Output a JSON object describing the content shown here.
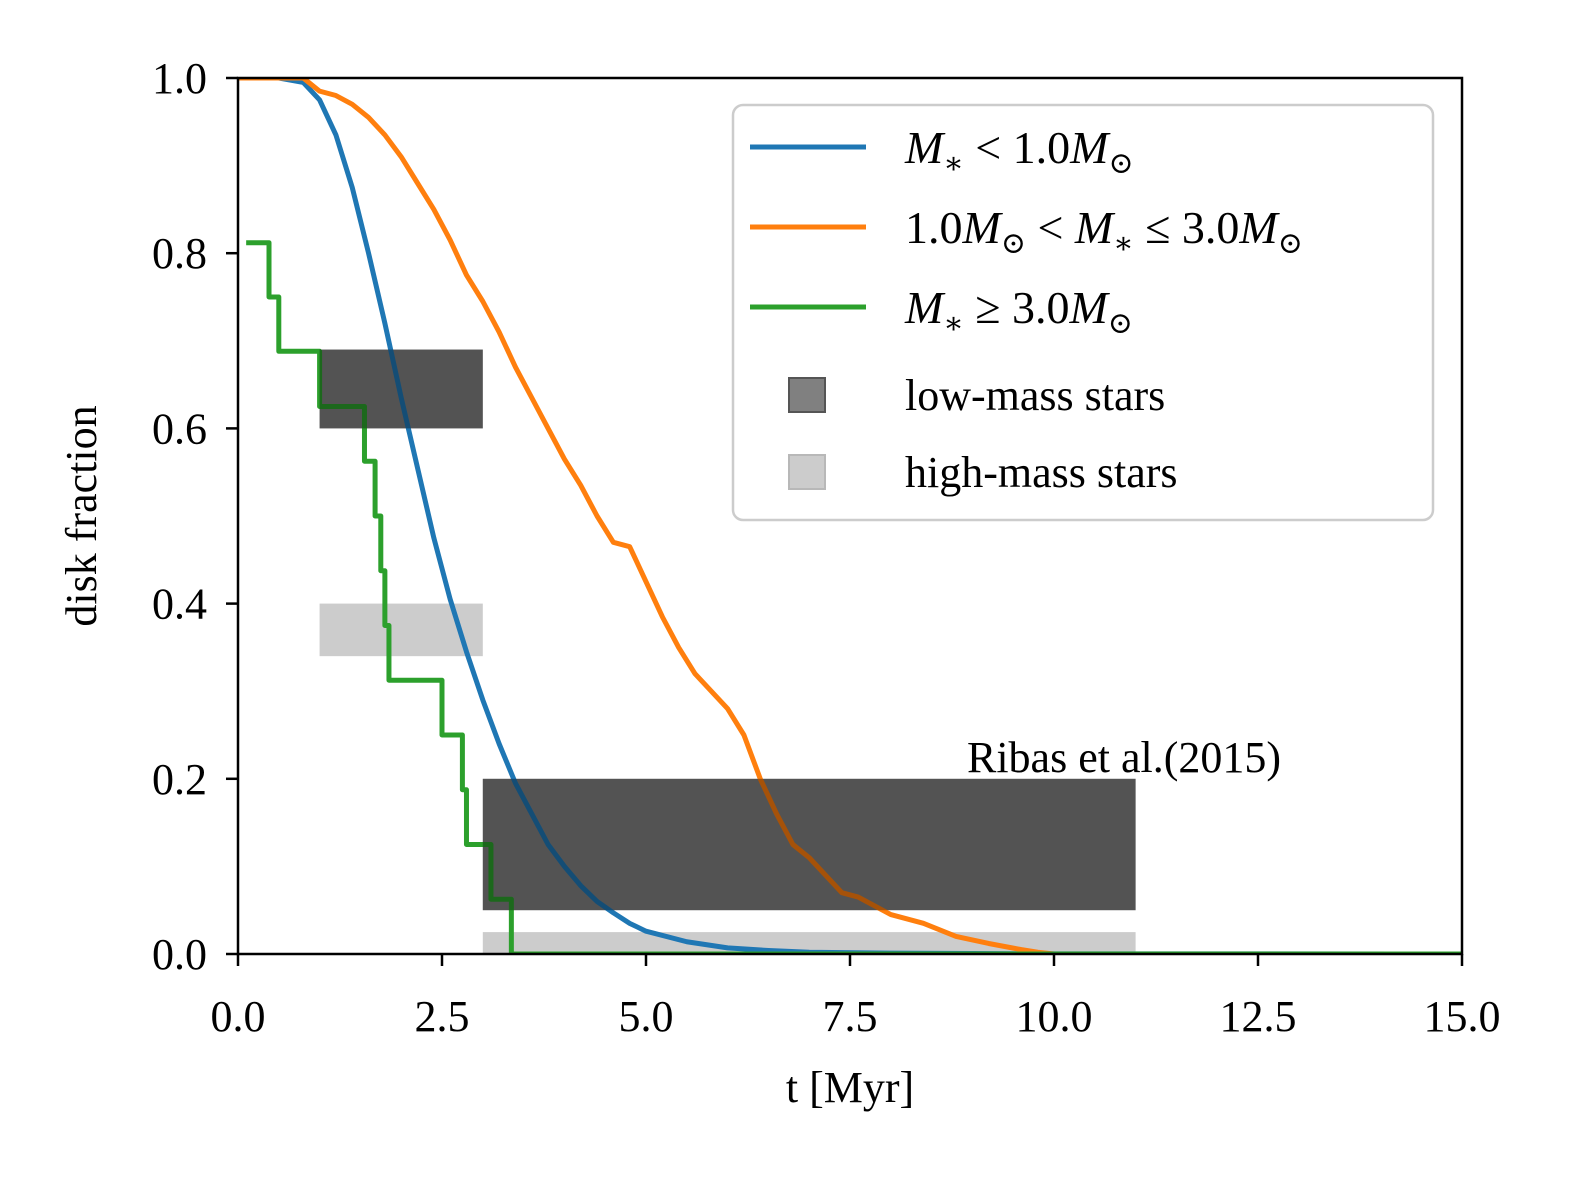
{
  "chart_data": {
    "type": "line",
    "title": "",
    "xlabel": "t [Myr]",
    "ylabel": "disk fraction",
    "xlim": [
      0,
      15
    ],
    "ylim": [
      0,
      1
    ],
    "grid": false,
    "legend_position": "top-right",
    "x_ticks": [
      "0.0",
      "2.5",
      "5.0",
      "7.5",
      "10.0",
      "12.5",
      "15.0"
    ],
    "y_ticks": [
      "0.0",
      "0.2",
      "0.4",
      "0.6",
      "0.8",
      "1.0"
    ],
    "series": [
      {
        "name": "M* < 1.0 M☉",
        "color": "#1f77b4",
        "step": false,
        "points": [
          [
            0,
            1
          ],
          [
            0.5,
            1
          ],
          [
            0.8,
            0.995
          ],
          [
            1.0,
            0.975
          ],
          [
            1.2,
            0.935
          ],
          [
            1.4,
            0.875
          ],
          [
            1.6,
            0.8
          ],
          [
            1.8,
            0.72
          ],
          [
            2.0,
            0.635
          ],
          [
            2.2,
            0.555
          ],
          [
            2.4,
            0.475
          ],
          [
            2.6,
            0.405
          ],
          [
            2.8,
            0.345
          ],
          [
            3.0,
            0.29
          ],
          [
            3.2,
            0.24
          ],
          [
            3.4,
            0.195
          ],
          [
            3.6,
            0.16
          ],
          [
            3.8,
            0.125
          ],
          [
            4.0,
            0.1
          ],
          [
            4.2,
            0.078
          ],
          [
            4.4,
            0.06
          ],
          [
            4.6,
            0.047
          ],
          [
            4.8,
            0.035
          ],
          [
            5.0,
            0.026
          ],
          [
            5.5,
            0.014
          ],
          [
            6.0,
            0.007
          ],
          [
            6.5,
            0.004
          ],
          [
            7.0,
            0.002
          ],
          [
            8.0,
            0.001
          ],
          [
            9.0,
            0.0005
          ],
          [
            10.0,
            0.0002
          ],
          [
            15.0,
            0
          ]
        ]
      },
      {
        "name": "1.0 M☉ < M* ≤ 3.0 M☉",
        "color": "#ff7f0e",
        "step": false,
        "points": [
          [
            0,
            1
          ],
          [
            0.8,
            1
          ],
          [
            1.0,
            0.985
          ],
          [
            1.2,
            0.98
          ],
          [
            1.4,
            0.97
          ],
          [
            1.6,
            0.955
          ],
          [
            1.8,
            0.935
          ],
          [
            2.0,
            0.91
          ],
          [
            2.2,
            0.88
          ],
          [
            2.4,
            0.85
          ],
          [
            2.6,
            0.815
          ],
          [
            2.8,
            0.775
          ],
          [
            3.0,
            0.745
          ],
          [
            3.2,
            0.71
          ],
          [
            3.4,
            0.67
          ],
          [
            3.6,
            0.635
          ],
          [
            3.8,
            0.6
          ],
          [
            4.0,
            0.565
          ],
          [
            4.2,
            0.535
          ],
          [
            4.4,
            0.5
          ],
          [
            4.6,
            0.47
          ],
          [
            4.8,
            0.465
          ],
          [
            5.0,
            0.425
          ],
          [
            5.2,
            0.385
          ],
          [
            5.4,
            0.35
          ],
          [
            5.6,
            0.32
          ],
          [
            5.8,
            0.3
          ],
          [
            6.0,
            0.28
          ],
          [
            6.2,
            0.25
          ],
          [
            6.4,
            0.2
          ],
          [
            6.6,
            0.16
          ],
          [
            6.8,
            0.125
          ],
          [
            7.0,
            0.11
          ],
          [
            7.2,
            0.09
          ],
          [
            7.4,
            0.07
          ],
          [
            7.6,
            0.065
          ],
          [
            7.8,
            0.055
          ],
          [
            8.0,
            0.045
          ],
          [
            8.4,
            0.035
          ],
          [
            8.8,
            0.02
          ],
          [
            9.2,
            0.012
          ],
          [
            9.6,
            0.005
          ],
          [
            9.8,
            0.002
          ],
          [
            10.0,
            0
          ],
          [
            15.0,
            0
          ]
        ]
      },
      {
        "name": "M* ≥ 3.0 M☉",
        "color": "#2ca02c",
        "step": true,
        "points": [
          [
            0.1,
            0.812
          ],
          [
            0.38,
            0.75
          ],
          [
            0.5,
            0.688
          ],
          [
            1.0,
            0.625
          ],
          [
            1.55,
            0.5625
          ],
          [
            1.68,
            0.5
          ],
          [
            1.75,
            0.4375
          ],
          [
            1.8,
            0.375
          ],
          [
            1.85,
            0.3125
          ],
          [
            2.5,
            0.25
          ],
          [
            2.75,
            0.1875
          ],
          [
            2.8,
            0.125
          ],
          [
            3.1,
            0.0625
          ],
          [
            3.35,
            0
          ],
          [
            15.0,
            0
          ]
        ]
      }
    ],
    "bands": [
      {
        "name": "low-mass stars",
        "color": "#808080",
        "x": [
          1,
          3
        ],
        "y": [
          0.6,
          0.69
        ]
      },
      {
        "name": "high-mass stars",
        "color": "#cccccc",
        "x": [
          1,
          3
        ],
        "y": [
          0.34,
          0.4
        ]
      },
      {
        "name": "low-mass stars",
        "color": "#808080",
        "x": [
          3,
          11
        ],
        "y": [
          0.05,
          0.2
        ]
      },
      {
        "name": "high-mass stars",
        "color": "#cccccc",
        "x": [
          3,
          11
        ],
        "y": [
          0,
          0.025
        ]
      }
    ],
    "annotation": "Ribas et al.(2015)",
    "legend": [
      {
        "kind": "line",
        "color": "#1f77b4",
        "label": "M* < 1.0 M☉"
      },
      {
        "kind": "line",
        "color": "#ff7f0e",
        "label": "1.0 M☉ < M* ≤ 3.0 M☉"
      },
      {
        "kind": "line",
        "color": "#2ca02c",
        "label": "M* ≥ 3.0 M☉"
      },
      {
        "kind": "patch",
        "color": "#808080",
        "label": "low-mass stars"
      },
      {
        "kind": "patch",
        "color": "#cccccc",
        "label": "high-mass stars"
      }
    ]
  }
}
